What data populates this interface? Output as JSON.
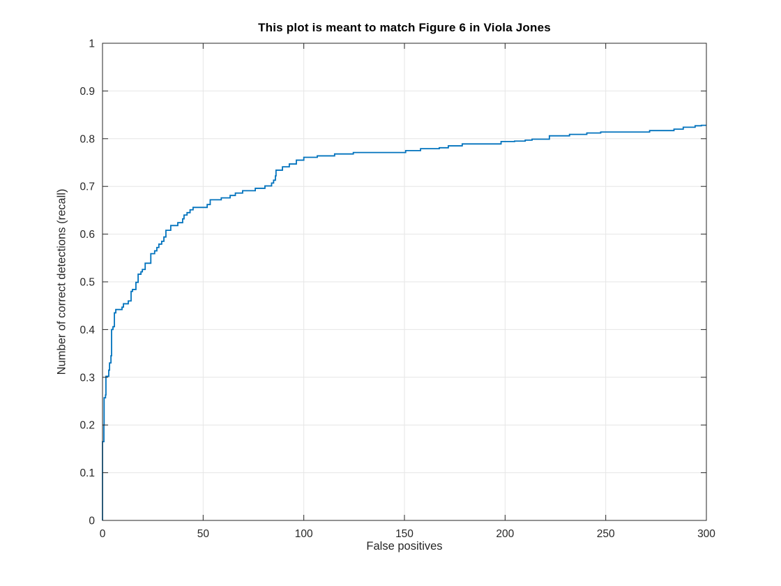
{
  "figure": {
    "background": "#ffffff"
  },
  "chart_data": {
    "type": "line",
    "line_style": "staircase",
    "title": "This plot is meant to match Figure 6 in Viola Jones",
    "xlabel": "False positives",
    "ylabel": "Number of correct detections (recall)",
    "xlim": [
      0,
      300
    ],
    "ylim": [
      0,
      1
    ],
    "xticks": [
      0,
      50,
      100,
      150,
      200,
      250,
      300
    ],
    "xtick_labels": [
      "0",
      "50",
      "100",
      "150",
      "200",
      "250",
      "300"
    ],
    "yticks": [
      0,
      0.1,
      0.2,
      0.3,
      0.4,
      0.5,
      0.6,
      0.7,
      0.8,
      0.9,
      1
    ],
    "ytick_labels": [
      "0",
      "0.1",
      "0.2",
      "0.3",
      "0.4",
      "0.5",
      "0.6",
      "0.7",
      "0.8",
      "0.9",
      "1"
    ],
    "grid": true,
    "legend": null,
    "colors": {
      "line": "#0072BD",
      "grid": "#e6e6e6",
      "axis": "#262626",
      "title": "#000000"
    },
    "points": [
      [
        0,
        0
      ],
      [
        0,
        0.165
      ],
      [
        0.7,
        0.165
      ],
      [
        0.7,
        0.2
      ],
      [
        0.8,
        0.2
      ],
      [
        0.8,
        0.257
      ],
      [
        1.5,
        0.257
      ],
      [
        1.5,
        0.263
      ],
      [
        1.7,
        0.263
      ],
      [
        1.7,
        0.302
      ],
      [
        3.1,
        0.302
      ],
      [
        3.1,
        0.315
      ],
      [
        3.5,
        0.315
      ],
      [
        3.5,
        0.33
      ],
      [
        4.2,
        0.33
      ],
      [
        4.2,
        0.345
      ],
      [
        4.5,
        0.345
      ],
      [
        4.5,
        0.4
      ],
      [
        5.2,
        0.4
      ],
      [
        5.2,
        0.406
      ],
      [
        5.9,
        0.406
      ],
      [
        5.9,
        0.435
      ],
      [
        6.6,
        0.435
      ],
      [
        6.6,
        0.442
      ],
      [
        9.7,
        0.442
      ],
      [
        9.7,
        0.447
      ],
      [
        10.4,
        0.447
      ],
      [
        10.4,
        0.454
      ],
      [
        12.8,
        0.454
      ],
      [
        12.8,
        0.46
      ],
      [
        14.2,
        0.46
      ],
      [
        14.2,
        0.48
      ],
      [
        14.9,
        0.48
      ],
      [
        14.9,
        0.484
      ],
      [
        16.6,
        0.484
      ],
      [
        16.6,
        0.499
      ],
      [
        17.7,
        0.499
      ],
      [
        17.7,
        0.516
      ],
      [
        19.1,
        0.516
      ],
      [
        19.1,
        0.521
      ],
      [
        19.8,
        0.521
      ],
      [
        19.8,
        0.526
      ],
      [
        21.2,
        0.526
      ],
      [
        21.2,
        0.539
      ],
      [
        24,
        0.539
      ],
      [
        24,
        0.559
      ],
      [
        25.9,
        0.559
      ],
      [
        25.9,
        0.565
      ],
      [
        27,
        0.565
      ],
      [
        27,
        0.572
      ],
      [
        28,
        0.572
      ],
      [
        28,
        0.579
      ],
      [
        29.4,
        0.579
      ],
      [
        29.4,
        0.585
      ],
      [
        30.5,
        0.585
      ],
      [
        30.5,
        0.594
      ],
      [
        31.5,
        0.594
      ],
      [
        31.5,
        0.608
      ],
      [
        33.9,
        0.608
      ],
      [
        33.9,
        0.618
      ],
      [
        37.4,
        0.618
      ],
      [
        37.4,
        0.624
      ],
      [
        39.8,
        0.624
      ],
      [
        39.8,
        0.632
      ],
      [
        40.5,
        0.632
      ],
      [
        40.5,
        0.64
      ],
      [
        42,
        0.64
      ],
      [
        42,
        0.645
      ],
      [
        43.5,
        0.645
      ],
      [
        43.5,
        0.651
      ],
      [
        45,
        0.651
      ],
      [
        45,
        0.656
      ],
      [
        52,
        0.656
      ],
      [
        52,
        0.662
      ],
      [
        53.5,
        0.662
      ],
      [
        53.5,
        0.672
      ],
      [
        59,
        0.672
      ],
      [
        59,
        0.676
      ],
      [
        63.4,
        0.676
      ],
      [
        63.4,
        0.681
      ],
      [
        66,
        0.681
      ],
      [
        66,
        0.686
      ],
      [
        69.6,
        0.686
      ],
      [
        69.6,
        0.691
      ],
      [
        75.9,
        0.691
      ],
      [
        75.9,
        0.696
      ],
      [
        80.7,
        0.696
      ],
      [
        80.7,
        0.701
      ],
      [
        84,
        0.701
      ],
      [
        84,
        0.707
      ],
      [
        85,
        0.707
      ],
      [
        85,
        0.713
      ],
      [
        85.9,
        0.713
      ],
      [
        85.9,
        0.722
      ],
      [
        86.2,
        0.722
      ],
      [
        86.2,
        0.734
      ],
      [
        89.4,
        0.734
      ],
      [
        89.4,
        0.741
      ],
      [
        92.8,
        0.741
      ],
      [
        92.8,
        0.747
      ],
      [
        96.3,
        0.747
      ],
      [
        96.3,
        0.755
      ],
      [
        100,
        0.755
      ],
      [
        100,
        0.761
      ],
      [
        106.7,
        0.761
      ],
      [
        106.7,
        0.764
      ],
      [
        115.3,
        0.764
      ],
      [
        115.3,
        0.768
      ],
      [
        124.6,
        0.768
      ],
      [
        124.6,
        0.771
      ],
      [
        150.6,
        0.771
      ],
      [
        150.6,
        0.775
      ],
      [
        158,
        0.775
      ],
      [
        158,
        0.779
      ],
      [
        167.3,
        0.779
      ],
      [
        167.3,
        0.781
      ],
      [
        171.8,
        0.781
      ],
      [
        171.8,
        0.785
      ],
      [
        178.7,
        0.785
      ],
      [
        178.7,
        0.789
      ],
      [
        198,
        0.789
      ],
      [
        198,
        0.794
      ],
      [
        204.7,
        0.794
      ],
      [
        204.7,
        0.795
      ],
      [
        210,
        0.795
      ],
      [
        210,
        0.797
      ],
      [
        213.4,
        0.797
      ],
      [
        213.4,
        0.799
      ],
      [
        222,
        0.799
      ],
      [
        222,
        0.806
      ],
      [
        232,
        0.806
      ],
      [
        232,
        0.809
      ],
      [
        240.6,
        0.809
      ],
      [
        240.6,
        0.812
      ],
      [
        247.5,
        0.812
      ],
      [
        247.5,
        0.814
      ],
      [
        271.8,
        0.814
      ],
      [
        271.8,
        0.817
      ],
      [
        283.9,
        0.817
      ],
      [
        283.9,
        0.82
      ],
      [
        288.5,
        0.82
      ],
      [
        288.5,
        0.824
      ],
      [
        294.4,
        0.824
      ],
      [
        294.4,
        0.827
      ],
      [
        297.5,
        0.827
      ],
      [
        297.5,
        0.828
      ],
      [
        300,
        0.828
      ]
    ]
  }
}
